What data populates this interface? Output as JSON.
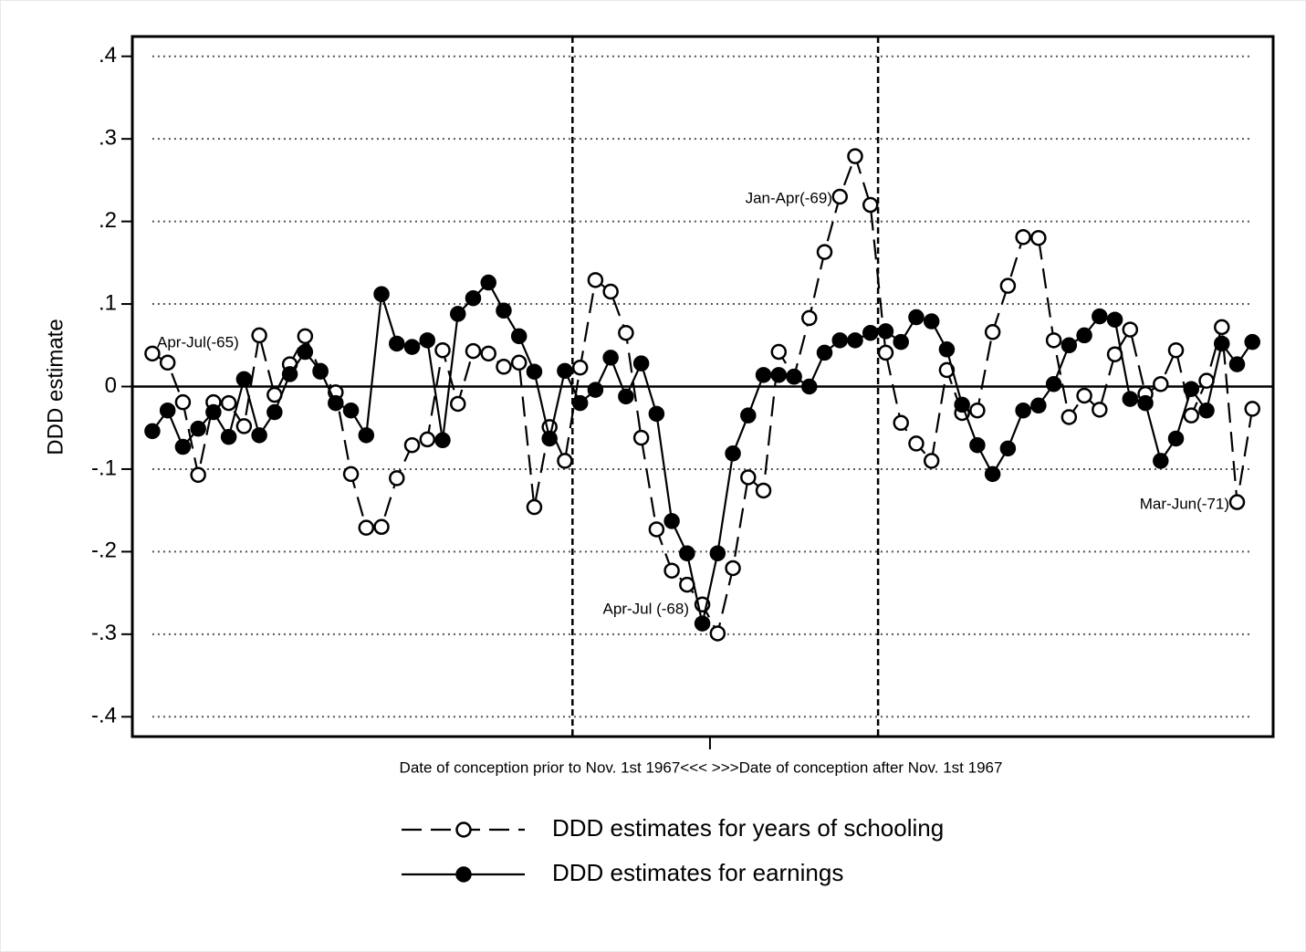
{
  "chart_data": {
    "type": "line",
    "xlabel": "Date of conception prior to Nov. 1st 1967<<< >>>Date of conception after Nov. 1st 1967",
    "ylabel": "DDD estimate",
    "x": [
      1,
      2,
      3,
      4,
      5,
      6,
      7,
      8,
      9,
      10,
      11,
      12,
      13,
      14,
      15,
      16,
      17,
      18,
      19,
      20,
      21,
      22,
      23,
      24,
      25,
      26,
      27,
      28,
      29,
      30,
      31,
      32,
      33,
      34,
      35,
      36,
      37,
      38,
      39,
      40,
      41,
      42,
      43,
      44,
      45,
      46,
      47,
      48,
      49,
      50,
      51,
      52,
      53,
      54,
      55,
      56,
      57,
      58,
      59,
      60,
      61,
      62,
      63,
      64,
      65,
      66,
      67,
      68,
      69,
      70,
      71,
      72,
      73
    ],
    "xlim": [
      -0.31,
      74.36
    ],
    "xticks": [
      37.5
    ],
    "vlines": [
      28.5,
      48.5
    ],
    "ylim": [
      -0.424,
      0.424
    ],
    "yticks": [
      {
        "value": -0.4,
        "label": "-.4"
      },
      {
        "value": -0.3,
        "label": "-.3"
      },
      {
        "value": -0.2,
        "label": "-.2"
      },
      {
        "value": -0.1,
        "label": "-.1"
      },
      0,
      {
        "value": 0.1,
        "label": ".1"
      },
      {
        "value": 0.2,
        "label": ".2"
      },
      {
        "value": 0.3,
        "label": ".3"
      },
      {
        "value": 0.4,
        "label": ".4"
      }
    ],
    "grid": true,
    "series": [
      {
        "name": "DDD estimates for years of schooling",
        "color": "#000000",
        "line_style": "dashed",
        "marker": "hollow",
        "values": [
          0.04,
          0.029,
          -0.019,
          -0.107,
          -0.019,
          -0.02,
          -0.048,
          0.062,
          -0.01,
          0.027,
          0.061,
          0.018,
          -0.007,
          -0.106,
          -0.171,
          -0.17,
          -0.111,
          -0.071,
          -0.064,
          0.044,
          -0.021,
          0.043,
          0.04,
          0.024,
          0.029,
          -0.146,
          -0.049,
          -0.09,
          0.023,
          0.129,
          0.115,
          0.065,
          -0.062,
          -0.173,
          -0.223,
          -0.24,
          -0.264,
          -0.299,
          -0.22,
          -0.11,
          -0.126,
          0.042,
          0.012,
          0.083,
          0.163,
          0.23,
          0.279,
          0.22,
          0.041,
          -0.044,
          -0.069,
          -0.09,
          0.02,
          -0.032,
          -0.029,
          0.066,
          0.122,
          0.181,
          0.18,
          0.056,
          -0.037,
          -0.011,
          -0.028,
          0.039,
          0.069,
          -0.009,
          0.003,
          0.044,
          -0.035,
          0.007,
          0.072,
          -0.14,
          -0.027
        ]
      },
      {
        "name": "DDD estimates for earnings",
        "color": "#000000",
        "line_style": "solid",
        "marker": "filled",
        "values": [
          -0.054,
          -0.029,
          -0.073,
          -0.051,
          -0.031,
          -0.061,
          0.009,
          -0.059,
          -0.031,
          0.015,
          0.042,
          0.019,
          -0.02,
          -0.029,
          -0.059,
          0.112,
          0.052,
          0.048,
          0.056,
          -0.065,
          0.088,
          0.107,
          0.126,
          0.092,
          0.061,
          0.018,
          -0.063,
          0.019,
          -0.02,
          -0.004,
          0.035,
          -0.012,
          0.028,
          -0.033,
          -0.163,
          -0.202,
          -0.287,
          -0.202,
          -0.081,
          -0.035,
          0.014,
          0.014,
          0.012,
          0.0,
          0.041,
          0.056,
          0.056,
          0.065,
          0.067,
          0.054,
          0.084,
          0.079,
          0.045,
          -0.022,
          -0.071,
          -0.106,
          -0.075,
          -0.029,
          -0.023,
          0.003,
          0.05,
          0.062,
          0.085,
          0.081,
          -0.015,
          -0.02,
          -0.09,
          -0.063,
          -0.003,
          -0.029,
          0.052,
          0.027,
          0.054
        ]
      }
    ],
    "annotations": [
      "Apr-Jul(-65)",
      "Jan-Apr(-69)",
      "Apr-Jul (-68)",
      "Mar-Jun(-71)"
    ]
  }
}
